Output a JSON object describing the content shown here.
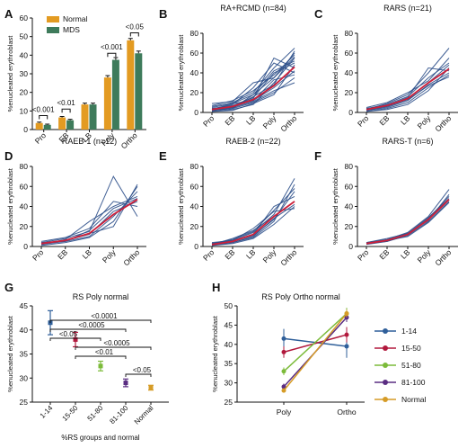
{
  "chart_data": [
    {
      "panel": "A",
      "type": "bar",
      "ylabel": "%enucleated erythroblast",
      "ylim": [
        0,
        60
      ],
      "yticks": [
        0,
        10,
        20,
        30,
        40,
        50,
        60
      ],
      "categories": [
        "Pro",
        "EB",
        "LB",
        "Poly",
        "Ortho"
      ],
      "series": [
        {
          "name": "Normal",
          "color": "#e39b22",
          "values": [
            3.5,
            6.5,
            13.5,
            28,
            48
          ],
          "err": [
            0.5,
            0.5,
            0.7,
            1,
            1
          ]
        },
        {
          "name": "MDS",
          "color": "#3e7b5b",
          "values": [
            2.5,
            5,
            13.5,
            37.5,
            41
          ],
          "err": [
            0.4,
            0.5,
            0.7,
            1.2,
            1.2
          ]
        }
      ],
      "annotations": [
        "<0.001",
        "<0.01",
        "<0.001",
        "<0.05"
      ],
      "legend": "top-left"
    },
    {
      "panel": "B",
      "type": "line",
      "title": "RA+RCMD (n=84)",
      "ylabel": "%enucleated erythroblast",
      "ylim": [
        0,
        80
      ],
      "yticks": [
        0,
        20,
        40,
        60,
        80
      ],
      "categories": [
        "Pro",
        "EB",
        "LB",
        "Poly",
        "Ortho"
      ],
      "line_color": "#2c4f8a",
      "mean_color": "#cc1f3a",
      "mean": [
        3,
        6,
        13,
        27,
        46
      ],
      "lines": [
        [
          2,
          4,
          10,
          20,
          35
        ],
        [
          5,
          9,
          18,
          35,
          60
        ],
        [
          3,
          6,
          12,
          25,
          42
        ],
        [
          1,
          3,
          8,
          30,
          55
        ],
        [
          4,
          7,
          15,
          40,
          50
        ],
        [
          2,
          5,
          11,
          22,
          30
        ],
        [
          6,
          10,
          20,
          45,
          65
        ],
        [
          3,
          8,
          25,
          50,
          40
        ],
        [
          1,
          2,
          9,
          18,
          48
        ],
        [
          7,
          12,
          22,
          38,
          58
        ],
        [
          2,
          6,
          14,
          55,
          45
        ],
        [
          4,
          5,
          16,
          28,
          62
        ],
        [
          3,
          9,
          12,
          33,
          38
        ],
        [
          2,
          4,
          18,
          42,
          52
        ],
        [
          9,
          11,
          30,
          35,
          56
        ]
      ]
    },
    {
      "panel": "C",
      "type": "line",
      "title": "RARS (n=21)",
      "ylabel": "%enucleated erythroblast",
      "ylim": [
        0,
        80
      ],
      "yticks": [
        0,
        20,
        40,
        60,
        80
      ],
      "categories": [
        "Pro",
        "EB",
        "LB",
        "Poly",
        "Ortho"
      ],
      "line_color": "#2c4f8a",
      "mean_color": "#cc1f3a",
      "mean": [
        3,
        7,
        14,
        30,
        44
      ],
      "lines": [
        [
          2,
          5,
          12,
          28,
          40
        ],
        [
          4,
          8,
          16,
          35,
          50
        ],
        [
          1,
          4,
          10,
          25,
          38
        ],
        [
          3,
          7,
          15,
          45,
          42
        ],
        [
          5,
          10,
          20,
          32,
          55
        ],
        [
          2,
          6,
          13,
          27,
          36
        ],
        [
          3,
          9,
          18,
          40,
          65
        ],
        [
          1,
          3,
          8,
          22,
          45
        ],
        [
          4,
          6,
          14,
          30,
          48
        ]
      ]
    },
    {
      "panel": "D",
      "type": "line",
      "title": "RAEB-1 (n=12)",
      "ylabel": "%enucleated erythroblast",
      "ylim": [
        0,
        80
      ],
      "yticks": [
        0,
        20,
        40,
        60,
        80
      ],
      "categories": [
        "Pro",
        "EB",
        "LB",
        "Poly",
        "Ortho"
      ],
      "line_color": "#2c4f8a",
      "mean_color": "#cc1f3a",
      "mean": [
        3,
        6,
        13,
        32,
        47
      ],
      "lines": [
        [
          2,
          5,
          10,
          30,
          55
        ],
        [
          4,
          8,
          15,
          70,
          30
        ],
        [
          3,
          6,
          12,
          35,
          45
        ],
        [
          1,
          4,
          9,
          25,
          60
        ],
        [
          5,
          9,
          18,
          45,
          40
        ],
        [
          2,
          7,
          25,
          40,
          50
        ],
        [
          3,
          6,
          13,
          20,
          62
        ],
        [
          4,
          5,
          16,
          38,
          48
        ]
      ]
    },
    {
      "panel": "E",
      "type": "line",
      "title": "RAEB-2 (n=22)",
      "ylabel": "%enucleated erythroblast",
      "ylim": [
        0,
        80
      ],
      "yticks": [
        0,
        20,
        40,
        60,
        80
      ],
      "categories": [
        "Pro",
        "EB",
        "LB",
        "Poly",
        "Ortho"
      ],
      "line_color": "#2c4f8a",
      "mean_color": "#cc1f3a",
      "mean": [
        2,
        5,
        12,
        30,
        45
      ],
      "lines": [
        [
          2,
          4,
          10,
          28,
          42
        ],
        [
          3,
          7,
          15,
          36,
          58
        ],
        [
          1,
          3,
          8,
          22,
          40
        ],
        [
          4,
          6,
          14,
          32,
          68
        ],
        [
          2,
          5,
          12,
          40,
          50
        ],
        [
          3,
          6,
          18,
          35,
          38
        ],
        [
          1,
          4,
          9,
          25,
          62
        ],
        [
          2,
          8,
          16,
          30,
          45
        ],
        [
          3,
          5,
          11,
          27,
          55
        ]
      ]
    },
    {
      "panel": "F",
      "type": "line",
      "title": "RARS-T (n=6)",
      "ylabel": "%enucleated erythroblast",
      "ylim": [
        0,
        80
      ],
      "yticks": [
        0,
        20,
        40,
        60,
        80
      ],
      "categories": [
        "Pro",
        "EB",
        "LB",
        "Poly",
        "Ortho"
      ],
      "line_color": "#2c4f8a",
      "mean_color": "#cc1f3a",
      "mean": [
        3,
        6,
        12,
        27,
        47
      ],
      "lines": [
        [
          3,
          5,
          11,
          25,
          45
        ],
        [
          4,
          7,
          14,
          30,
          57
        ],
        [
          2,
          5,
          12,
          28,
          50
        ],
        [
          3,
          6,
          13,
          26,
          52
        ],
        [
          4,
          8,
          13,
          29,
          48
        ],
        [
          3,
          6,
          10,
          24,
          44
        ]
      ]
    },
    {
      "panel": "G",
      "type": "scatter",
      "title": "RS Poly normal",
      "xlabel": "%RS groups and normal",
      "ylabel": "%enucleated erythroblast",
      "ylim": [
        25,
        45
      ],
      "yticks": [
        25,
        30,
        35,
        40,
        45
      ],
      "categories": [
        "1-14",
        "15-50",
        "51-80",
        "81-100",
        "Normal"
      ],
      "values": [
        41.5,
        38,
        32.5,
        29,
        28
      ],
      "err": [
        2.5,
        1.5,
        1,
        0.8,
        0.5
      ],
      "colors": [
        "#2f5f9a",
        "#b2193d",
        "#7cbb3a",
        "#5a2d82",
        "#d69c27"
      ],
      "annotations": [
        "<0.0001",
        "<0.0005",
        "<0.05",
        "<0.0005",
        "<0.01",
        "<0.05"
      ]
    },
    {
      "panel": "H",
      "type": "line",
      "title": "RS Poly Ortho normal",
      "ylabel": "%enucleated erythroblast",
      "ylim": [
        25,
        50
      ],
      "yticks": [
        25,
        30,
        35,
        40,
        45,
        50
      ],
      "categories": [
        "Poly",
        "Ortho"
      ],
      "legend": "right",
      "series": [
        {
          "name": "1-14",
          "color": "#2f5f9a",
          "values": [
            41.5,
            39.5
          ],
          "err": [
            2.5,
            3
          ]
        },
        {
          "name": "15-50",
          "color": "#b2193d",
          "values": [
            38,
            42.5
          ],
          "err": [
            1.5,
            2
          ]
        },
        {
          "name": "51-80",
          "color": "#7cbb3a",
          "values": [
            33,
            48
          ],
          "err": [
            1,
            1.5
          ]
        },
        {
          "name": "81-100",
          "color": "#5a2d82",
          "values": [
            29,
            47
          ],
          "err": [
            0.8,
            1.2
          ]
        },
        {
          "name": "Normal",
          "color": "#d69c27",
          "values": [
            28,
            48
          ],
          "err": [
            0.5,
            1
          ]
        }
      ]
    }
  ]
}
